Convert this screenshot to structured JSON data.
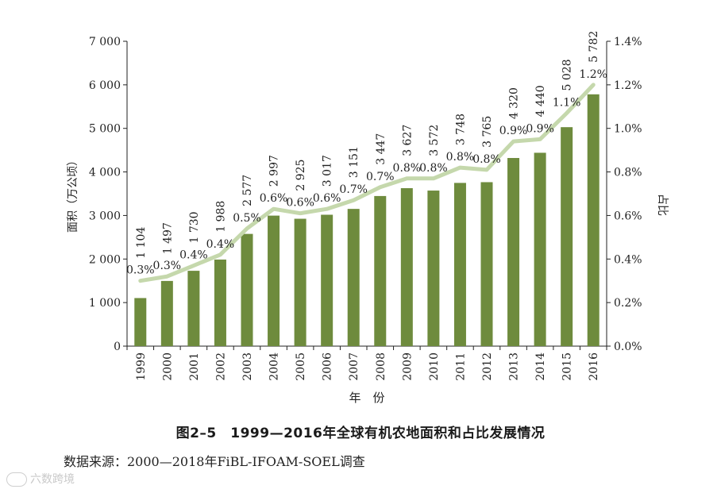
{
  "chart_data": {
    "type": "bar",
    "categories": [
      "1999",
      "2000",
      "2001",
      "2002",
      "2003",
      "2004",
      "2005",
      "2006",
      "2007",
      "2008",
      "2009",
      "2010",
      "2011",
      "2012",
      "2013",
      "2014",
      "2015",
      "2016"
    ],
    "series": [
      {
        "values": [
          1104,
          1497,
          1730,
          1988,
          2577,
          2997,
          2925,
          3017,
          3151,
          3447,
          3627,
          3572,
          3748,
          3765,
          4320,
          4440,
          5028,
          5782
        ],
        "labels": [
          "1 104",
          "1 497",
          "1 730",
          "1 988",
          "2 577",
          "2 997",
          "2 925",
          "3 017",
          "3 151",
          "3 447",
          "3 627",
          "3 572",
          "3 748",
          "3 765",
          "4 320",
          "4 440",
          "5 028",
          "5 782"
        ],
        "color": "#6e8b3d"
      },
      {
        "type": "line",
        "axis": "right",
        "values": [
          0.3,
          0.32,
          0.37,
          0.42,
          0.54,
          0.63,
          0.61,
          0.63,
          0.67,
          0.73,
          0.77,
          0.77,
          0.82,
          0.81,
          0.94,
          0.95,
          1.07,
          1.2
        ],
        "labels": [
          "0.3%",
          "0.3%",
          "0.4%",
          "0.4%",
          "0.5%",
          "0.6%",
          "0.6%",
          "0.6%",
          "0.7%",
          "0.7%",
          "0.8%",
          "0.8%",
          "0.8%",
          "0.8%",
          "0.9%",
          "0.9%",
          "1.1%",
          "1.2%"
        ],
        "color": "#c5d8ac"
      }
    ],
    "ylabel": "面积（万公顷）",
    "y2label": "占比",
    "xlabel": "年　份",
    "ylim": [
      0,
      7000
    ],
    "y2lim": [
      0,
      1.4
    ],
    "yticks": [
      "0",
      "1 000",
      "2 000",
      "3 000",
      "4 000",
      "5 000",
      "6 000",
      "7 000"
    ],
    "y2ticks": [
      "0.0%",
      "0.2%",
      "0.4%",
      "0.6%",
      "0.8%",
      "1.0%",
      "1.2%",
      "1.4%"
    ]
  },
  "caption": "图2–5　1999—2016年全球有机农地面积和占比发展情况",
  "source": "数据来源：2000—2018年FiBL-IFOAM-SOEL调查",
  "watermark": "六数跨境"
}
